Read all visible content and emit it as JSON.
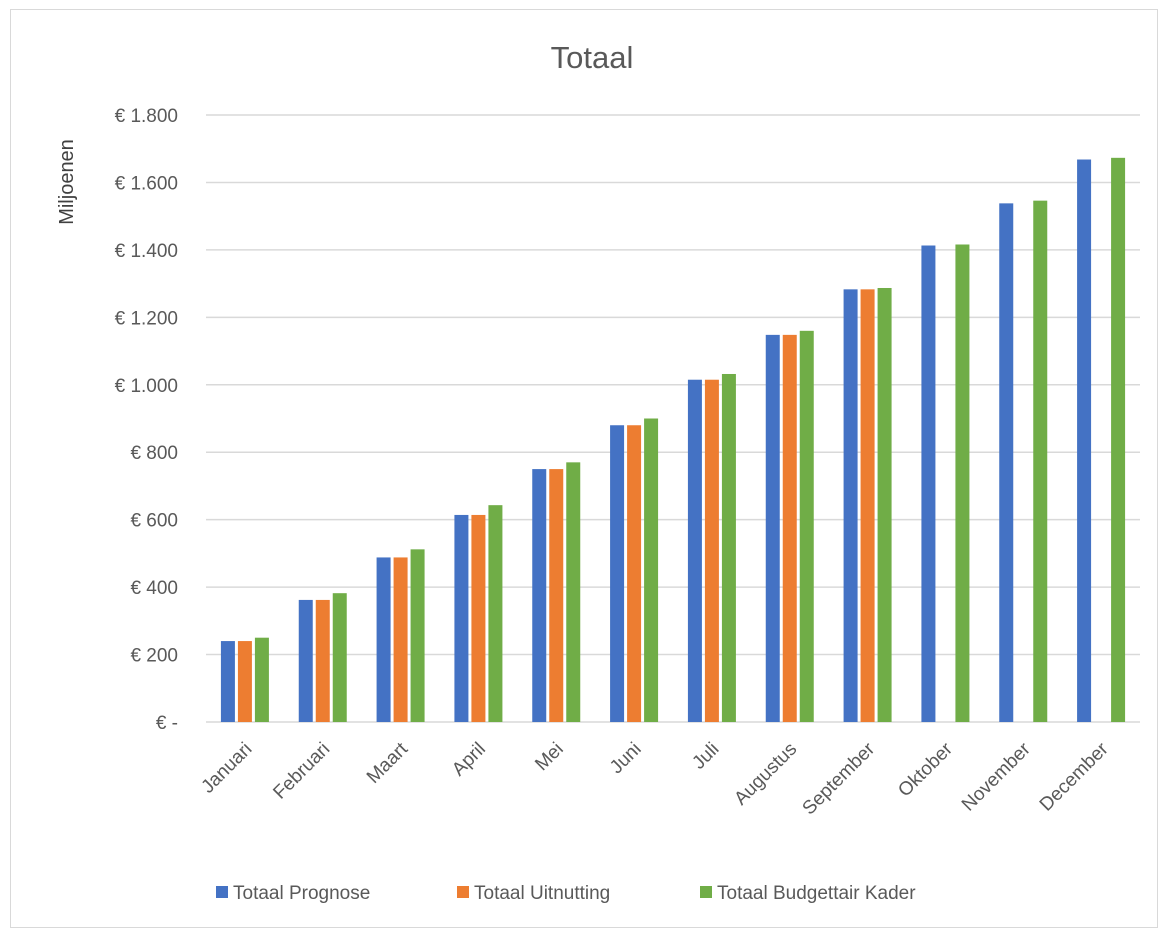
{
  "chart_data": {
    "type": "bar",
    "title": "Totaal",
    "ylabel": "Miljoenen",
    "xlabel": "",
    "categories": [
      "Januari",
      "Februari",
      "Maart",
      "April",
      "Mei",
      "Juni",
      "Juli",
      "Augustus",
      "September",
      "Oktober",
      "November",
      "December"
    ],
    "series": [
      {
        "name": "Totaal Prognose",
        "color": "#4472C4",
        "values": [
          240,
          362,
          488,
          614,
          750,
          880,
          1015,
          1148,
          1283,
          1413,
          1538,
          1668
        ]
      },
      {
        "name": "Totaal Uitnutting",
        "color": "#ED7D31",
        "values": [
          240,
          362,
          488,
          614,
          750,
          880,
          1015,
          1148,
          1283,
          null,
          null,
          null
        ]
      },
      {
        "name": "Totaal Budgettair Kader",
        "color": "#70AD47",
        "values": [
          250,
          382,
          512,
          643,
          770,
          900,
          1032,
          1160,
          1287,
          1416,
          1546,
          1673
        ]
      }
    ],
    "ylim": [
      0,
      1800
    ],
    "yticks": [
      0,
      200,
      400,
      600,
      800,
      1000,
      1200,
      1400,
      1600,
      1800
    ],
    "ytick_labels": [
      "€ -",
      "€ 200",
      "€ 400",
      "€ 600",
      "€ 800",
      "€ 1.000",
      "€ 1.200",
      "€ 1.400",
      "€ 1.600",
      "€ 1.800"
    ],
    "grid": true,
    "legend_position": "bottom"
  }
}
